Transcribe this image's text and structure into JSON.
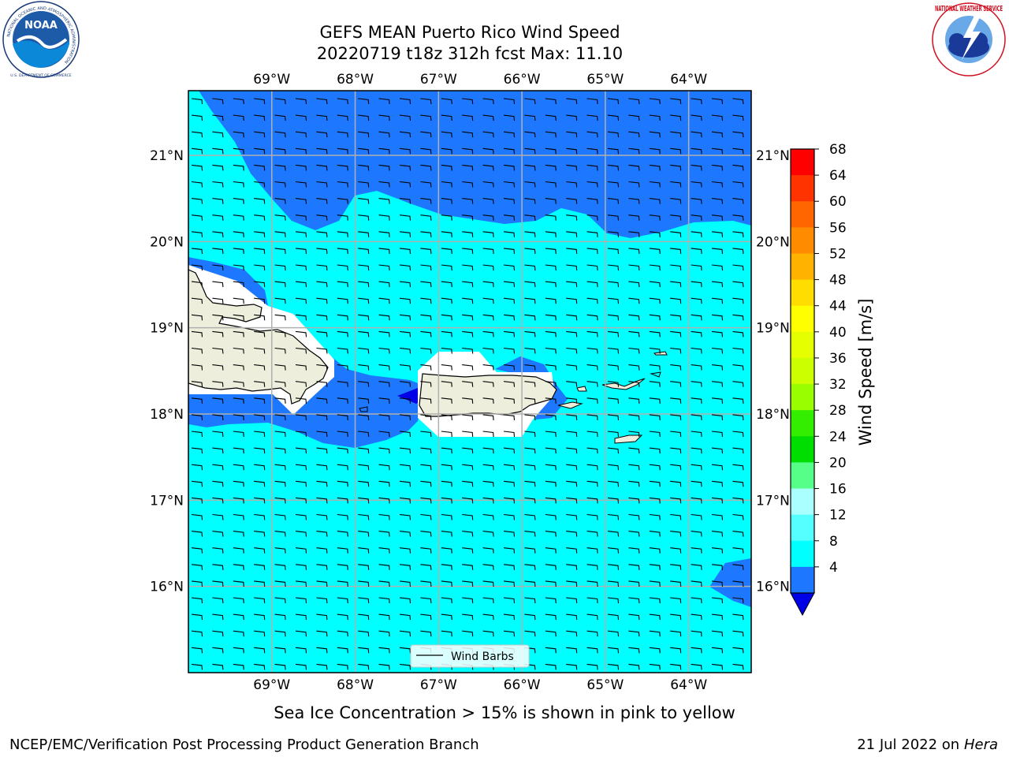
{
  "header": {
    "title_line1": "GEFS MEAN Puerto Rico Wind Speed",
    "title_line2": "20220719 t18z 312h fcst   Max: 11.10"
  },
  "logos": {
    "left": {
      "icon": "noaa-logo-icon",
      "ring_text": "NATIONAL OCEANIC AND ATMOSPHERIC ADMINISTRATION",
      "bottom_text": "U.S. DEPARTMENT OF COMMERCE",
      "center_text": "NOAA"
    },
    "right": {
      "icon": "nws-logo-icon",
      "ring_text": "NATIONAL WEATHER SERVICE"
    }
  },
  "map": {
    "lon_labels": [
      "69°W",
      "68°W",
      "67°W",
      "66°W",
      "65°W",
      "64°W"
    ],
    "lat_labels": [
      "21°N",
      "20°N",
      "19°N",
      "18°N",
      "17°N",
      "16°N"
    ],
    "legend_label": "Wind Barbs",
    "colors": {
      "ocean_light": "#00ffff",
      "ocean_dark": "#1e78ff",
      "ocean_deep": "#0000e6",
      "land": "#eeeedc",
      "masked": "#ffffff",
      "grid": "#b0b0b0"
    }
  },
  "colorbar": {
    "label": "Wind Speed [m/s]",
    "ticks": [
      "68",
      "64",
      "60",
      "56",
      "52",
      "48",
      "44",
      "40",
      "36",
      "32",
      "28",
      "24",
      "20",
      "16",
      "12",
      "8",
      "4"
    ],
    "colors": [
      "#ff0000",
      "#ff3300",
      "#ff6600",
      "#ff8c00",
      "#ffb300",
      "#ffdd00",
      "#ffff00",
      "#e6ff00",
      "#ccff00",
      "#99ff00",
      "#33ee00",
      "#00dd00",
      "#55ff88",
      "#aaffff",
      "#55ffff",
      "#00ffff",
      "#1e78ff"
    ],
    "extend_color": "#0000e6"
  },
  "chart_data": {
    "type": "heatmap",
    "title": "GEFS MEAN Puerto Rico Wind Speed",
    "subtitle": "20220719 t18z 312h fcst   Max: 11.10",
    "colorbar_label": "Wind Speed [m/s]",
    "colorbar_range": [
      4,
      68
    ],
    "max_value": 11.1,
    "x_ticks": [
      "69°W",
      "68°W",
      "67°W",
      "66°W",
      "65°W",
      "64°W"
    ],
    "y_ticks": [
      "21°N",
      "20°N",
      "19°N",
      "18°N",
      "17°N",
      "16°N"
    ],
    "xlim": [
      -70.0,
      -63.25
    ],
    "ylim": [
      15.0,
      21.75
    ],
    "grid": true,
    "legend": [
      "Wind Barbs"
    ]
  },
  "footer": {
    "note": "Sea Ice Concentration > 15% is shown in pink to yellow",
    "left": "NCEP/EMC/Verification Post Processing Product Generation Branch",
    "right_prefix": "21 Jul 2022 on ",
    "right_machine": "Hera"
  }
}
